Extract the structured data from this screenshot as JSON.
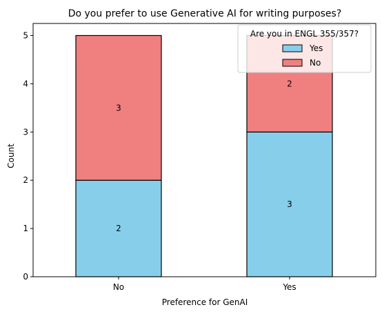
{
  "chart_data": {
    "type": "bar",
    "stacked": true,
    "title": "Do you prefer to use Generative AI for writing purposes?",
    "xlabel": "Preference for GenAI",
    "ylabel": "Count",
    "categories": [
      "No",
      "Yes"
    ],
    "ylim": [
      0,
      5.25
    ],
    "yticks": [
      0,
      1,
      2,
      3,
      4,
      5
    ],
    "series": [
      {
        "name": "Yes",
        "values": [
          2,
          3
        ],
        "color": "#87ceeb"
      },
      {
        "name": "No",
        "values": [
          3,
          2
        ],
        "color": "#f08080"
      }
    ],
    "legend": {
      "title": "Are you in ENGL 355/357?",
      "placement": "top-right"
    },
    "data_labels": true,
    "grid": false
  }
}
